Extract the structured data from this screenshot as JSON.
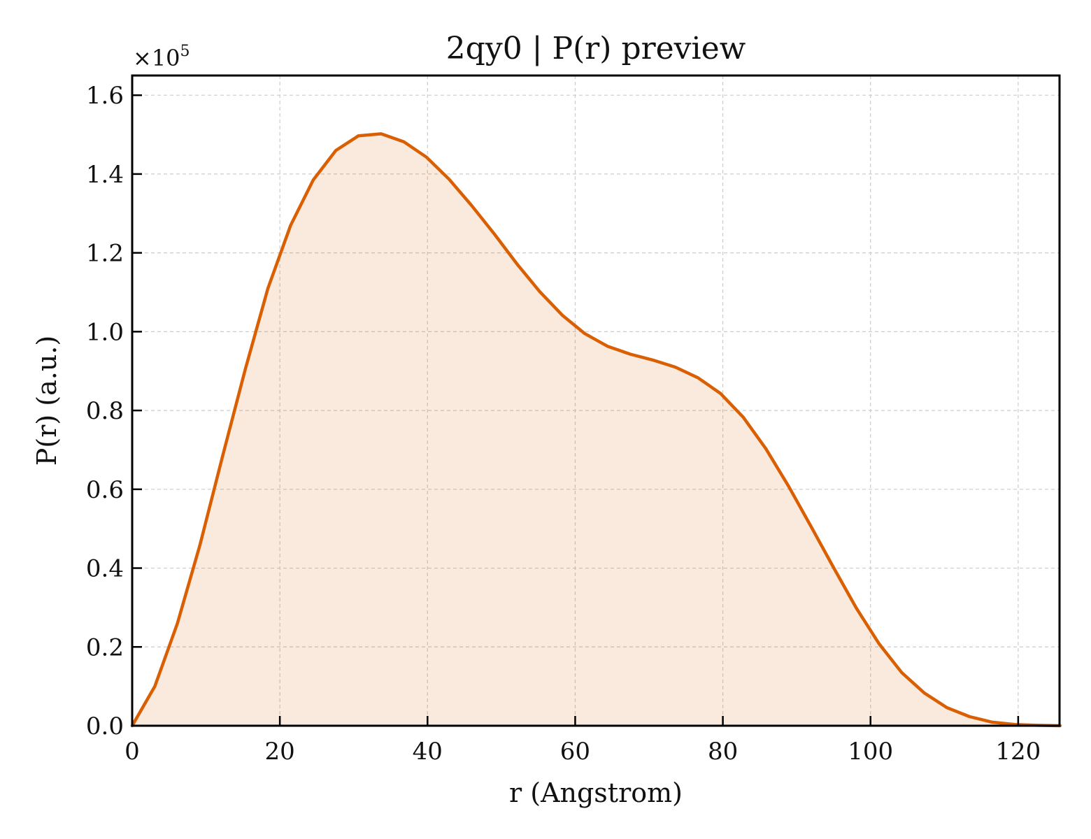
{
  "chart_data": {
    "type": "area",
    "title": "2qy0 | P(r) preview",
    "xlabel": "r (Angstrom)",
    "ylabel": "P(r) (a.u.)",
    "y_multiplier_label": "×10",
    "y_multiplier_exponent": "5",
    "xlim": [
      0,
      125.6
    ],
    "ylim": [
      0,
      1.65
    ],
    "x_ticks": [
      0,
      20,
      40,
      60,
      80,
      100,
      120
    ],
    "x_tick_labels": [
      "0",
      "20",
      "40",
      "60",
      "80",
      "100",
      "120"
    ],
    "y_ticks": [
      0.0,
      0.2,
      0.4,
      0.6,
      0.8,
      1.0,
      1.2,
      1.4,
      1.6
    ],
    "y_tick_labels": [
      "0.0",
      "0.2",
      "0.4",
      "0.6",
      "0.8",
      "1.0",
      "1.2",
      "1.4",
      "1.6"
    ],
    "grid": true,
    "series": [
      {
        "color": "#d95f02",
        "fill_color": "#d95f02",
        "x": [
          0,
          3.07,
          6.13,
          9.2,
          12.26,
          15.33,
          18.39,
          21.46,
          24.52,
          27.59,
          30.65,
          33.72,
          36.78,
          39.85,
          42.91,
          45.98,
          49.05,
          52.11,
          55.18,
          58.24,
          61.31,
          64.37,
          67.44,
          70.5,
          73.57,
          76.63,
          79.7,
          82.76,
          85.83,
          88.9,
          91.96,
          95.03,
          98.09,
          101.16,
          104.22,
          107.29,
          110.35,
          113.42,
          116.48,
          119.55,
          122.61,
          125.68
        ],
        "y": [
          0.0,
          0.1,
          0.26,
          0.46,
          0.685,
          0.905,
          1.11,
          1.27,
          1.385,
          1.46,
          1.497,
          1.502,
          1.482,
          1.443,
          1.387,
          1.32,
          1.248,
          1.172,
          1.102,
          1.042,
          0.995,
          0.963,
          0.943,
          0.928,
          0.91,
          0.883,
          0.843,
          0.783,
          0.703,
          0.608,
          0.505,
          0.4,
          0.298,
          0.208,
          0.135,
          0.083,
          0.046,
          0.023,
          0.009,
          0.003,
          0.001,
          0.0
        ]
      }
    ]
  }
}
